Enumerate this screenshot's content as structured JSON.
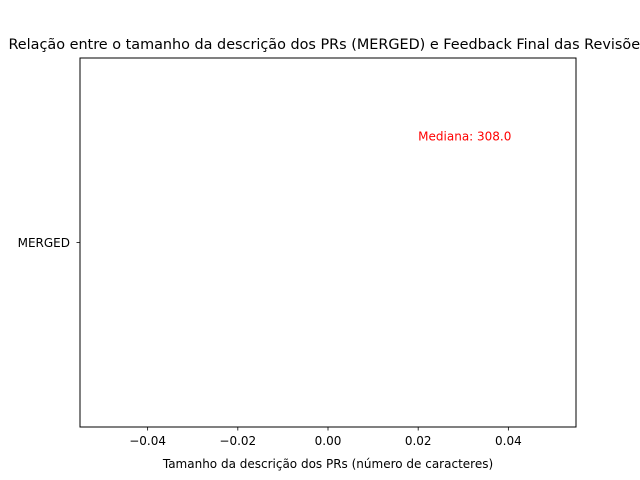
{
  "chart_data": {
    "type": "box",
    "title": "Relação entre o tamanho da descrição dos PRs (MERGED) e Feedback Final das Revisões",
    "xlabel": "Tamanho da descrição dos PRs (número de caracteres)",
    "ylabel": "",
    "categories": [
      "MERGED"
    ],
    "xlim": [
      -0.055,
      0.055
    ],
    "xticks": [
      -0.04,
      -0.02,
      0.0,
      0.02,
      0.04
    ],
    "xtick_labels": [
      "−0.04",
      "−0.02",
      "0.00",
      "0.02",
      "0.04"
    ],
    "series": [],
    "annotations": [
      {
        "text": "Mediana: 308.0",
        "x": 0.02,
        "category": "MERGED",
        "color": "#ff0000"
      }
    ],
    "grid": false,
    "legend": "none"
  }
}
